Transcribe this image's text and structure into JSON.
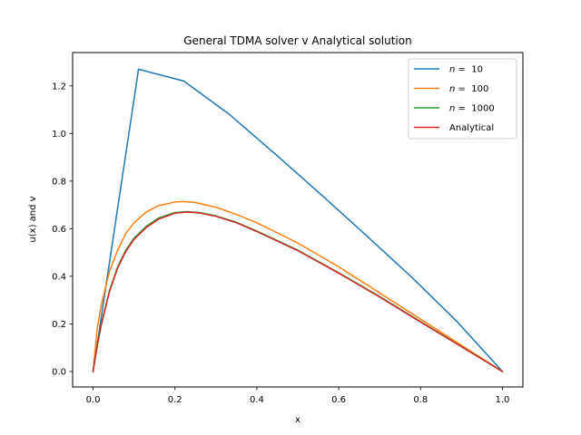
{
  "chart_data": {
    "type": "line",
    "title": "General TDMA solver v Analytical solution",
    "xlabel": "x",
    "ylabel": "u(x) and v",
    "xlim": [
      -0.05,
      1.05
    ],
    "ylim": [
      -0.065,
      1.34
    ],
    "xticks": [
      0.0,
      0.2,
      0.4,
      0.6,
      0.8,
      1.0
    ],
    "yticks": [
      0.0,
      0.2,
      0.4,
      0.6,
      0.8,
      1.0,
      1.2
    ],
    "grid": false,
    "legend_position": "top-right",
    "series": [
      {
        "name": "n = 10",
        "legend_italic": "n",
        "legend_rest": " =  10",
        "color": "#1f77b4",
        "x": [
          0.0,
          0.111,
          0.222,
          0.333,
          0.444,
          0.556,
          0.667,
          0.778,
          0.889,
          1.0
        ],
        "y": [
          0.0,
          1.27,
          1.22,
          1.08,
          0.915,
          0.745,
          0.572,
          0.397,
          0.21,
          0.0
        ]
      },
      {
        "name": "n = 100",
        "legend_italic": "n",
        "legend_rest": " =  100",
        "color": "#ff7f0e",
        "x": [
          0.0,
          0.01,
          0.02,
          0.04,
          0.06,
          0.08,
          0.1,
          0.13,
          0.16,
          0.2,
          0.22,
          0.25,
          0.3,
          0.35,
          0.4,
          0.5,
          0.6,
          0.7,
          0.8,
          0.9,
          1.0
        ],
        "y": [
          0.0,
          0.18,
          0.28,
          0.42,
          0.51,
          0.58,
          0.625,
          0.67,
          0.697,
          0.712,
          0.714,
          0.71,
          0.69,
          0.66,
          0.625,
          0.54,
          0.44,
          0.33,
          0.22,
          0.11,
          0.0
        ]
      },
      {
        "name": "n = 1000",
        "legend_italic": "n",
        "legend_rest": " =  1000",
        "color": "#2ca02c",
        "x": [
          0.0,
          0.01,
          0.02,
          0.04,
          0.06,
          0.08,
          0.1,
          0.13,
          0.16,
          0.2,
          0.23,
          0.26,
          0.3,
          0.35,
          0.4,
          0.5,
          0.6,
          0.7,
          0.8,
          0.9,
          1.0
        ],
        "y": [
          0.0,
          0.11,
          0.2,
          0.34,
          0.44,
          0.51,
          0.56,
          0.61,
          0.645,
          0.668,
          0.672,
          0.668,
          0.654,
          0.627,
          0.59,
          0.51,
          0.415,
          0.315,
          0.21,
          0.105,
          0.0
        ]
      },
      {
        "name": "Analytical",
        "color": "#d62728",
        "x": [
          0.0,
          0.01,
          0.02,
          0.04,
          0.06,
          0.08,
          0.1,
          0.13,
          0.16,
          0.2,
          0.23,
          0.26,
          0.3,
          0.35,
          0.4,
          0.5,
          0.6,
          0.7,
          0.8,
          0.9,
          1.0
        ],
        "y": [
          0.0,
          0.105,
          0.195,
          0.335,
          0.435,
          0.505,
          0.555,
          0.605,
          0.64,
          0.665,
          0.67,
          0.666,
          0.652,
          0.625,
          0.588,
          0.508,
          0.413,
          0.313,
          0.208,
          0.104,
          0.0
        ]
      }
    ]
  }
}
